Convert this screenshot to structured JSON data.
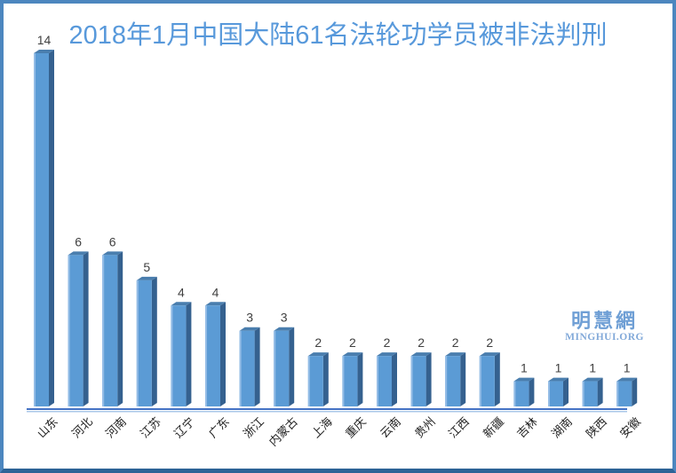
{
  "title": "2018年1月中国大陆61名法轮功学员被非法判刑",
  "watermark": {
    "cn": "明慧網",
    "en": "MINGHUI.ORG"
  },
  "colors": {
    "title": "#5899DB",
    "bar_front": "#5B9BD5",
    "bar_side": "#35618F",
    "bar_top": "#4A7EAE",
    "bar_edge_light": "#93BCE6",
    "axis_dark": "#4472C4",
    "axis_light": "#A9C7E8",
    "value_label": "#404040",
    "category_label": "#1F1F1F",
    "border": "#4C86BF",
    "border_bottom": "#2D6396",
    "watermark_cn": "#6F9FD5",
    "watermark_en": "#82A9D9",
    "background": "#FFFFFF"
  },
  "chart_data": {
    "type": "bar",
    "style": "3d-bar",
    "title": "2018年1月中国大陆61名法轮功学员被非法判刑",
    "categories": [
      "山东",
      "河北",
      "河南",
      "江苏",
      "辽宁",
      "广东",
      "浙江",
      "内蒙古",
      "上海",
      "重庆",
      "云南",
      "贵州",
      "江西",
      "新疆",
      "吉林",
      "湖南",
      "陕西",
      "安徽"
    ],
    "values": [
      14,
      6,
      6,
      5,
      4,
      4,
      3,
      3,
      2,
      2,
      2,
      2,
      2,
      2,
      1,
      1,
      1,
      1
    ],
    "total": 61,
    "xlabel": "",
    "ylabel": "",
    "ylim": [
      0,
      14
    ],
    "grid": false,
    "legend": false,
    "data_labels": true,
    "category_label_rotation_deg": -45
  }
}
